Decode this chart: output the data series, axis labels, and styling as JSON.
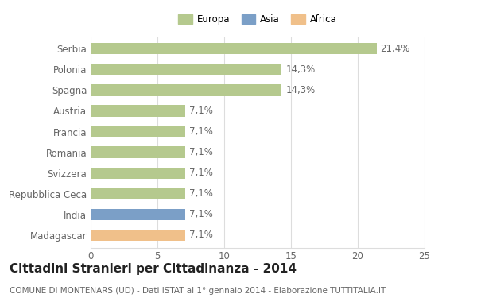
{
  "categories": [
    "Serbia",
    "Polonia",
    "Spagna",
    "Austria",
    "Francia",
    "Romania",
    "Svizzera",
    "Repubblica Ceca",
    "India",
    "Madagascar"
  ],
  "values": [
    21.4,
    14.3,
    14.3,
    7.1,
    7.1,
    7.1,
    7.1,
    7.1,
    7.1,
    7.1
  ],
  "labels": [
    "21,4%",
    "14,3%",
    "14,3%",
    "7,1%",
    "7,1%",
    "7,1%",
    "7,1%",
    "7,1%",
    "7,1%",
    "7,1%"
  ],
  "colors": [
    "#b5c98e",
    "#b5c98e",
    "#b5c98e",
    "#b5c98e",
    "#b5c98e",
    "#b5c98e",
    "#b5c98e",
    "#b5c98e",
    "#7b9fc7",
    "#f0c08a"
  ],
  "legend_labels": [
    "Europa",
    "Asia",
    "Africa"
  ],
  "legend_colors": [
    "#b5c98e",
    "#7b9fc7",
    "#f0c08a"
  ],
  "xlim": [
    0,
    25
  ],
  "xticks": [
    0,
    5,
    10,
    15,
    20,
    25
  ],
  "title": "Cittadini Stranieri per Cittadinanza - 2014",
  "subtitle": "COMUNE DI MONTENARS (UD) - Dati ISTAT al 1° gennaio 2014 - Elaborazione TUTTITALIA.IT",
  "background_color": "#ffffff",
  "grid_color": "#dddddd",
  "bar_height": 0.55,
  "label_fontsize": 8.5,
  "tick_fontsize": 8.5,
  "title_fontsize": 11,
  "subtitle_fontsize": 7.5
}
